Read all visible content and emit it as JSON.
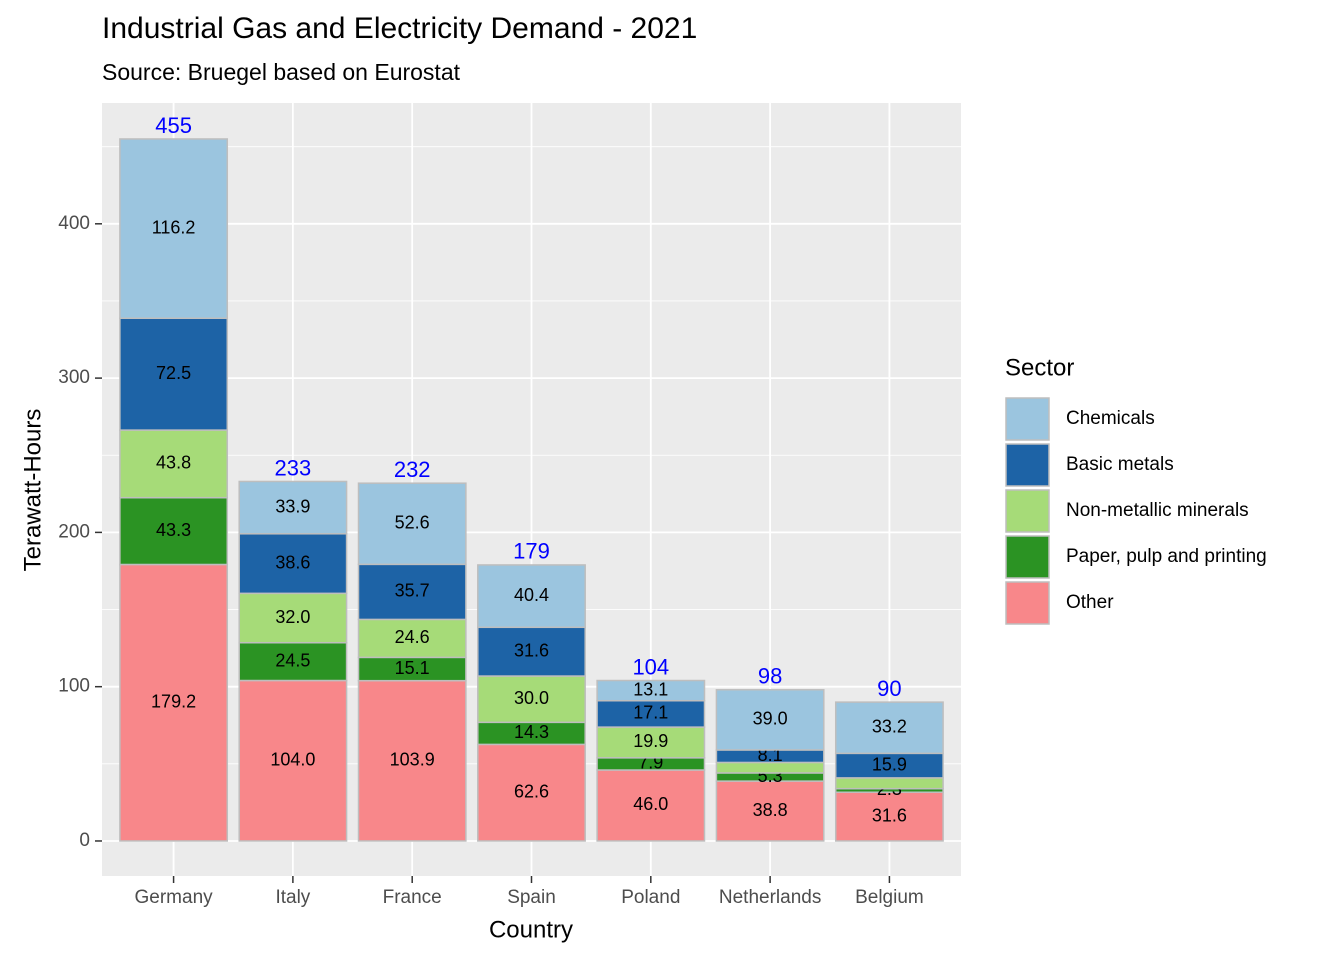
{
  "chart_data": {
    "type": "stacked_bar",
    "title": "Industrial Gas and Electricity Demand - 2021",
    "subtitle": "Source: Bruegel based on Eurostat",
    "x_label": "Country",
    "y_label": "Terawatt-Hours",
    "legend_title": "Sector",
    "legend": "right",
    "grid": true,
    "categories": [
      "Germany",
      "Italy",
      "France",
      "Spain",
      "Poland",
      "Netherlands",
      "Belgium"
    ],
    "series": [
      {
        "name": "Chemicals",
        "color": "#9bc5df",
        "values": [
          116.2,
          33.9,
          52.6,
          40.4,
          13.1,
          39.0,
          33.2
        ],
        "value_labels": [
          "116.2",
          "33.9",
          "52.6",
          "40.4",
          "13.1",
          "39.0",
          "33.2"
        ]
      },
      {
        "name": "Basic metals",
        "color": "#1d63a6",
        "values": [
          72.5,
          38.6,
          35.7,
          31.6,
          17.1,
          8.1,
          15.9
        ],
        "value_labels": [
          "72.5",
          "38.6",
          "35.7",
          "31.6",
          "17.1",
          "8.1",
          "15.9"
        ]
      },
      {
        "name": "Non-metallic minerals",
        "color": "#a6db78",
        "values": [
          43.8,
          32.0,
          24.6,
          30.0,
          19.9,
          6.8,
          7.0
        ],
        "value_labels": [
          "43.8",
          "32.0",
          "24.6",
          "30.0",
          "19.9",
          null,
          null
        ]
      },
      {
        "name": "Paper, pulp and printing",
        "color": "#2b9323",
        "values": [
          43.3,
          24.5,
          15.1,
          14.3,
          7.9,
          5.3,
          2.3
        ],
        "value_labels": [
          "43.3",
          "24.5",
          "15.1",
          "14.3",
          "7.9",
          "5.3",
          "2.3"
        ]
      },
      {
        "name": "Other",
        "color": "#f8878a",
        "values": [
          179.2,
          104.0,
          103.9,
          62.6,
          46.0,
          38.8,
          31.6
        ],
        "value_labels": [
          "179.2",
          "104.0",
          "103.9",
          "62.6",
          "46.0",
          "38.8",
          "31.6"
        ]
      }
    ],
    "totals": [
      455,
      233,
      232,
      179,
      104,
      98,
      90
    ],
    "totals_color": "#0000ff",
    "ylim": [
      -22.7,
      478.3
    ],
    "yticks": [
      0,
      100,
      200,
      300,
      400
    ],
    "y_minor_grid": [
      50,
      150,
      250,
      350,
      450
    ]
  }
}
